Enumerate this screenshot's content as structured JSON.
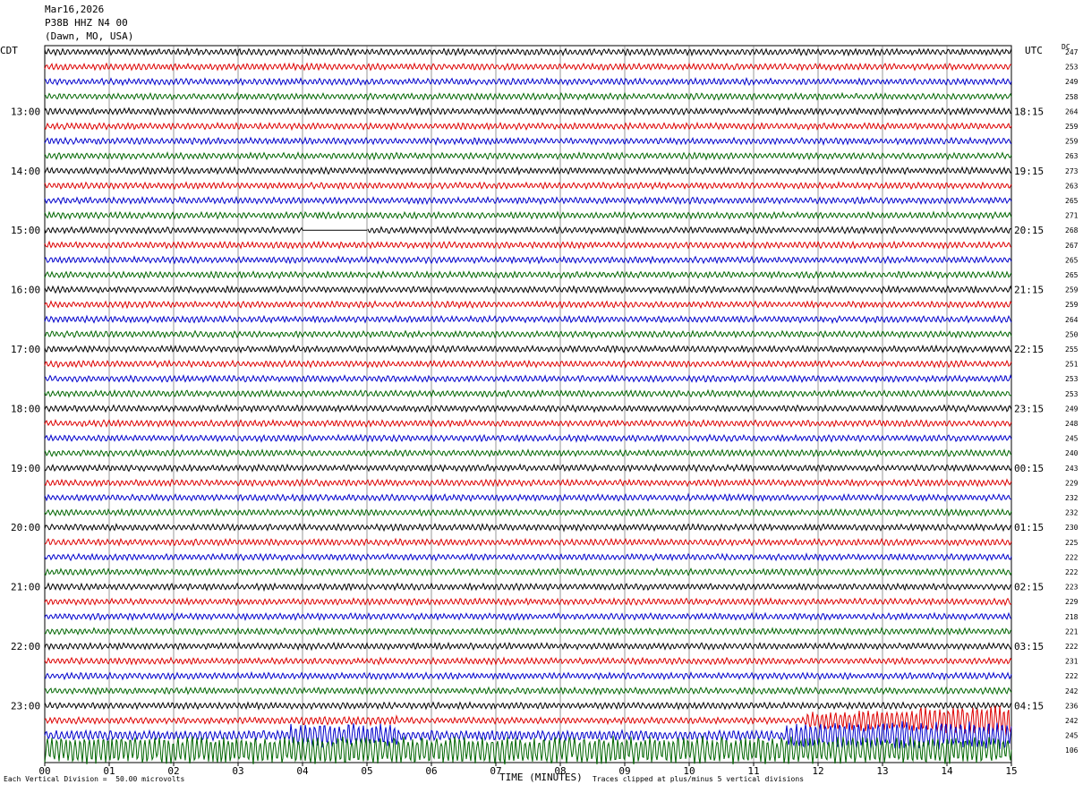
{
  "header": {
    "date": "Mar16,2026",
    "station": "P38B HHZ N4 00",
    "location": "(Dawn, MO, USA)"
  },
  "left_axis_label": "CDT",
  "right_axis_label": "UTC",
  "dc_label": "DC",
  "footer": {
    "x_axis_title": "TIME (MINUTES)",
    "scale_note": "Each Vertical Division =  50.00 microvolts",
    "clip_note": "Traces clipped at plus/minus 5 vertical divisions"
  },
  "colors": {
    "row0": "#000000",
    "row1": "#dd0000",
    "row2": "#0000cc",
    "row3": "#006600",
    "grid": "#555555"
  },
  "chart_data": {
    "type": "line",
    "title": "",
    "xlabel": "TIME (MINUTES)",
    "ylabel": "",
    "xlim": [
      0,
      15
    ],
    "x_ticks": [
      "00",
      "01",
      "02",
      "03",
      "04",
      "05",
      "06",
      "07",
      "08",
      "09",
      "10",
      "11",
      "12",
      "13",
      "14",
      "15"
    ],
    "row_minutes": 15,
    "row_color_cycle": [
      "black",
      "red",
      "blue",
      "green"
    ],
    "cdt_hour_labels": [
      "13:00",
      "14:00",
      "15:00",
      "16:00",
      "17:00",
      "18:00",
      "19:00",
      "20:00",
      "21:00",
      "22:00",
      "23:00"
    ],
    "utc_hour_labels": [
      "18:15",
      "19:15",
      "20:15",
      "21:15",
      "22:15",
      "23:15",
      "00:15",
      "01:15",
      "02:15",
      "03:15",
      "04:15"
    ],
    "dc_offsets": [
      247,
      253,
      249,
      258,
      264,
      259,
      259,
      263,
      273,
      263,
      265,
      271,
      268,
      267,
      265,
      265,
      259,
      259,
      264,
      250,
      255,
      251,
      253,
      253,
      249,
      248,
      245,
      240,
      243,
      229,
      232,
      232,
      230,
      225,
      222,
      222,
      223,
      229,
      218,
      221,
      222,
      231,
      222,
      242,
      236,
      242,
      245,
      106
    ],
    "clip_divisions": 5,
    "vertical_division_microvolts": 50.0,
    "data_gaps": [
      {
        "row": 12,
        "start_min": 4.0,
        "end_min": 5.0
      }
    ],
    "events": [
      {
        "row": 45,
        "start_min": 4.0,
        "description_level": "moderate"
      },
      {
        "row": 45,
        "start_min": 12.0,
        "description_level": "large"
      },
      {
        "row": 46,
        "start_min": 0.0,
        "description_level": "large"
      },
      {
        "row": 47,
        "start_min": 0.0,
        "description_level": "clipped"
      }
    ]
  }
}
